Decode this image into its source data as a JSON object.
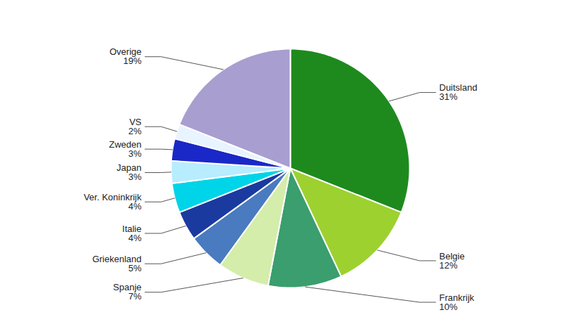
{
  "chart_data": {
    "type": "pie",
    "categories": [
      "Duitsland",
      "Belgie",
      "Frankrijk",
      "Spanje",
      "Griekenland",
      "Italie",
      "Ver. Koninkrijk",
      "Japan",
      "Zweden",
      "VS",
      "Overige"
    ],
    "values": [
      31,
      12,
      10,
      7,
      5,
      4,
      4,
      3,
      3,
      2,
      19
    ],
    "value_labels": [
      "31%",
      "12%",
      "10%",
      "7%",
      "5%",
      "4%",
      "4%",
      "3%",
      "3%",
      "2%",
      "19%"
    ],
    "colors": [
      "#1e8a1e",
      "#9dd130",
      "#3a9e6e",
      "#d4edaa",
      "#4a7abf",
      "#1a3a9f",
      "#00d4e8",
      "#b8ecff",
      "#1a28c8",
      "#e8f4ff",
      "#a89ed0"
    ],
    "data_labels": true
  }
}
